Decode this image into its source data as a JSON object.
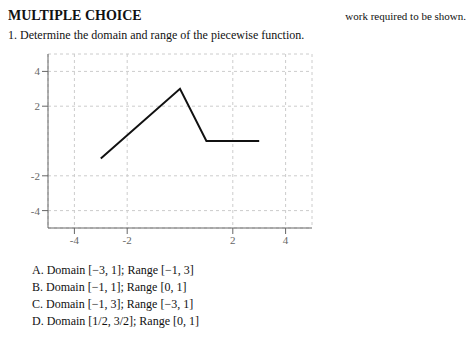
{
  "chart_data": {
    "type": "line",
    "title": "MULTIPLE CHOICE",
    "subtitle": "1. Determine the domain and range of the piecewise function.",
    "annotations": [
      "work required to be shown.",
      "A. Domain [−3, 1]; Range [−1, 3]",
      "B. Domain [−1, 1]; Range [0, 1]",
      "C. Domain [−1, 3]; Range [−3, 1]",
      "D. Domain [1/2, 3/2]; Range [0, 1]"
    ],
    "x": [
      -3,
      0,
      1,
      3
    ],
    "values": [
      -1,
      3,
      0,
      0
    ],
    "color": "#111111",
    "xlim": [
      -5,
      5
    ],
    "ylim": [
      -5,
      5
    ],
    "xticks": [
      -4,
      -2,
      2,
      4
    ],
    "yticks": [
      -4,
      -2,
      2,
      4
    ],
    "grid": true
  }
}
